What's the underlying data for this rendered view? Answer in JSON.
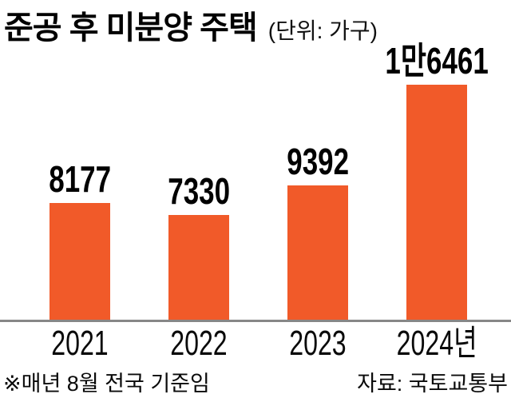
{
  "header": {
    "title": "준공 후 미분양 주택",
    "unit_label": "(단위: 가구)"
  },
  "footer": {
    "note": "※매년 8월 전국 기준임",
    "source": "자료: 국토교통부"
  },
  "colors": {
    "bar": "#f15a29",
    "axis": "#878787",
    "text": "#000000",
    "background": "#ffffff"
  },
  "chart_data": {
    "type": "bar",
    "title": "준공 후 미분양 주택",
    "unit": "가구",
    "categories": [
      "2021",
      "2022",
      "2023",
      "2024년"
    ],
    "values": [
      8177,
      7330,
      9392,
      16461
    ],
    "value_labels": [
      "8177",
      "7330",
      "9392",
      "1만6461"
    ],
    "xlabel": "",
    "ylabel": "",
    "ylim": [
      0,
      16461
    ],
    "grid": false,
    "legend_position": "none",
    "bar_color": "#f15a29",
    "footnote": "※매년 8월 전국 기준임",
    "source": "자료: 국토교통부"
  }
}
